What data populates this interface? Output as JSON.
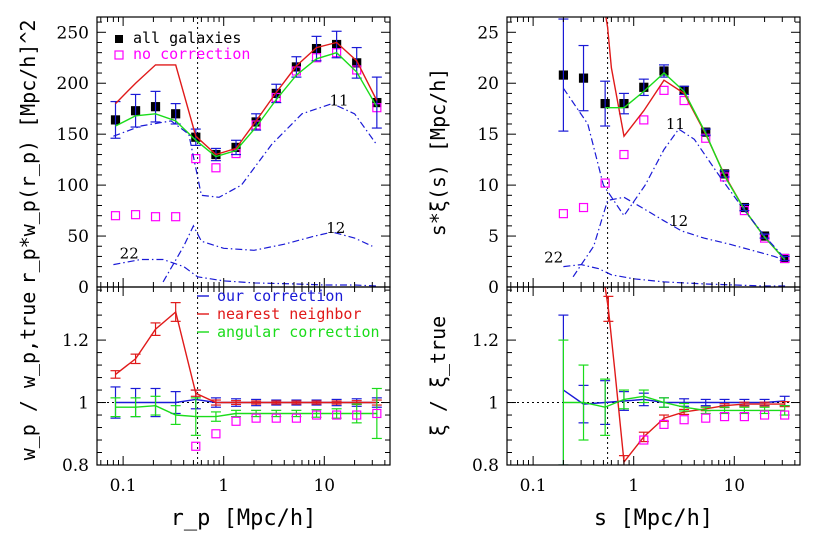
{
  "colors": {
    "all": "#000000",
    "nocorr": "#ff00ff",
    "our": "#1a1ad6",
    "nearest": "#e01a1a",
    "angular": "#1adc1a",
    "axis": "#000000"
  },
  "chart_data": [
    {
      "type": "line",
      "panel": "top-left",
      "xscale": "log",
      "xlim": [
        0.055,
        45
      ],
      "ylim": [
        0,
        265
      ],
      "ylabel": "r_p*w_p(r_p) [Mpc/h]^2",
      "yticks": [
        0,
        50,
        100,
        150,
        200,
        250
      ],
      "vline": 0.55,
      "legend": [
        "all galaxies",
        "no correction"
      ],
      "annotations": [
        {
          "text": "11",
          "x": 14,
          "y": 178
        },
        {
          "text": "12",
          "x": 13,
          "y": 53
        },
        {
          "text": "22",
          "x": 0.115,
          "y": 28
        }
      ],
      "x": [
        0.084,
        0.133,
        0.21,
        0.333,
        0.528,
        0.837,
        1.326,
        2.1,
        3.33,
        5.28,
        8.37,
        13.26,
        21.0,
        33.3
      ],
      "series": [
        {
          "name": "all galaxies",
          "style": "points",
          "y": [
            164,
            173,
            177,
            170,
            147,
            130,
            137,
            162,
            190,
            216,
            234,
            238,
            220,
            181
          ]
        },
        {
          "name": "no correction",
          "style": "points",
          "y": [
            70,
            71,
            69,
            69,
            126,
            117,
            131,
            159,
            186,
            212,
            225,
            230,
            213,
            176
          ]
        },
        {
          "name": "our correction",
          "style": "errorbars",
          "y": [
            164,
            173,
            177,
            170,
            147,
            130,
            137,
            162,
            190,
            216,
            234,
            238,
            220,
            181
          ],
          "err": [
            18,
            16,
            15,
            10,
            8,
            6,
            7,
            8,
            9,
            10,
            12,
            13,
            15,
            25
          ]
        },
        {
          "name": "nearest neighbor",
          "style": "line",
          "x": [
            0.084,
            0.133,
            0.21,
            0.333,
            0.528,
            0.837,
            1.326,
            2.1,
            3.33,
            5.28,
            8.37,
            13.26,
            21.0,
            33.3
          ],
          "y": [
            180,
            200,
            218,
            218,
            148,
            130,
            136,
            163,
            191,
            217,
            235,
            240,
            222,
            183
          ]
        },
        {
          "name": "angular correction",
          "style": "line",
          "x": [
            0.084,
            0.133,
            0.21,
            0.333,
            0.528,
            0.837,
            1.326,
            2.1,
            3.33,
            5.28,
            8.37,
            13.26,
            21.0,
            33.3
          ],
          "y": [
            158,
            168,
            170,
            163,
            144,
            128,
            134,
            157,
            184,
            208,
            224,
            230,
            211,
            177
          ]
        },
        {
          "name": "11",
          "style": "dashdot",
          "x": [
            0.08,
            0.15,
            0.3,
            0.45,
            0.6,
            0.9,
            1.5,
            3,
            6,
            12,
            20,
            33
          ],
          "y": [
            148,
            158,
            163,
            150,
            90,
            88,
            100,
            140,
            170,
            180,
            170,
            140
          ]
        },
        {
          "name": "12",
          "style": "dashdot",
          "x": [
            0.25,
            0.4,
            0.5,
            0.6,
            1.0,
            2.0,
            4.0,
            8.0,
            12.0,
            20.0,
            30.0
          ],
          "y": [
            5,
            40,
            60,
            45,
            38,
            36,
            42,
            50,
            54,
            48,
            40
          ]
        },
        {
          "name": "22",
          "style": "dashdot",
          "x": [
            0.08,
            0.15,
            0.25,
            0.4,
            0.55,
            1,
            2,
            5,
            10,
            20,
            33
          ],
          "y": [
            22,
            27,
            27,
            20,
            10,
            6,
            4,
            3,
            2,
            2,
            1
          ]
        }
      ]
    },
    {
      "type": "line",
      "panel": "top-right",
      "xscale": "log",
      "xlim": [
        0.055,
        45
      ],
      "ylim": [
        0,
        26.5
      ],
      "ylabel": "s*ξ(s) [Mpc/h]",
      "yticks": [
        0,
        5,
        10,
        15,
        20,
        25
      ],
      "vline": 0.55,
      "annotations": [
        {
          "text": "11",
          "x": 2.6,
          "y": 15.5
        },
        {
          "text": "12",
          "x": 2.8,
          "y": 6.0
        },
        {
          "text": "22",
          "x": 0.16,
          "y": 2.4
        }
      ],
      "x": [
        0.2,
        0.317,
        0.52,
        0.8,
        1.26,
        2.0,
        3.17,
        5.2,
        8.0,
        12.6,
        20.0,
        31.7
      ],
      "series": [
        {
          "name": "all galaxies",
          "style": "points",
          "y": [
            20.8,
            20.5,
            18.0,
            18.0,
            19.6,
            21.2,
            19.3,
            15.2,
            11.1,
            7.8,
            5.0,
            2.8
          ]
        },
        {
          "name": "no correction",
          "style": "points",
          "y": [
            7.2,
            7.8,
            10.2,
            13.0,
            16.4,
            19.3,
            18.3,
            14.6,
            10.8,
            7.5,
            4.8,
            2.8
          ]
        },
        {
          "name": "our correction",
          "style": "errorbars",
          "y": [
            20.8,
            20.5,
            18.0,
            18.0,
            19.6,
            21.2,
            19.3,
            15.2,
            11.1,
            7.8,
            5.0,
            2.8
          ],
          "err": [
            5.5,
            3.2,
            2.2,
            1.0,
            0.8,
            0.6,
            0.4,
            0.3,
            0.3,
            0.3,
            0.2,
            0.2
          ]
        },
        {
          "name": "nearest neighbor",
          "style": "line",
          "x": [
            0.52,
            0.55,
            0.6,
            0.8,
            1.26,
            2.0,
            3.17,
            5.2,
            8.0,
            12.6,
            20.0,
            31.7
          ],
          "y": [
            27,
            25.5,
            21.5,
            14.8,
            17.3,
            20.3,
            19.0,
            15.0,
            11.0,
            7.6,
            4.9,
            2.7
          ]
        },
        {
          "name": "angular correction",
          "style": "line",
          "x": [
            0.52,
            0.8,
            1.26,
            2.0,
            3.17,
            5.2,
            8.0,
            12.6,
            20.0,
            31.7
          ],
          "y": [
            17.6,
            17.6,
            19.2,
            21.0,
            19.2,
            15.1,
            10.9,
            7.6,
            4.9,
            2.7
          ]
        },
        {
          "name": "11",
          "style": "dashdot",
          "x": [
            0.2,
            0.35,
            0.5,
            0.8,
            1.3,
            2.0,
            2.8,
            4.0,
            7.0,
            12.0,
            20.0,
            32.0
          ],
          "y": [
            19.5,
            16.0,
            10.0,
            7.0,
            10.0,
            13.5,
            15.5,
            14.5,
            11.0,
            7.8,
            5.0,
            2.8
          ]
        },
        {
          "name": "12",
          "style": "dashdot",
          "x": [
            0.25,
            0.4,
            0.55,
            0.8,
            1.2,
            2.0,
            3.0,
            5.0,
            9.0,
            15.0,
            25.0,
            32.0
          ],
          "y": [
            1.0,
            4.0,
            8.5,
            8.8,
            7.8,
            6.5,
            5.5,
            4.8,
            4.2,
            3.6,
            3.0,
            2.6
          ]
        },
        {
          "name": "22",
          "style": "dashdot",
          "x": [
            0.2,
            0.3,
            0.45,
            0.6,
            1.0,
            2.0,
            5.0,
            10.0,
            20.0,
            32.0
          ],
          "y": [
            2.0,
            2.2,
            1.8,
            1.2,
            0.8,
            0.5,
            0.3,
            0.2,
            0.1,
            0.1
          ]
        }
      ]
    },
    {
      "type": "line",
      "panel": "bottom-left",
      "xscale": "log",
      "xlim": [
        0.055,
        45
      ],
      "ylim": [
        0.8,
        1.37
      ],
      "xlabel": "r_p [Mpc/h]",
      "ylabel": "w_p / w_p,true",
      "xticks": [
        "0.1",
        "1",
        "10"
      ],
      "yticks": [
        "0.8",
        "1",
        "1.2"
      ],
      "vline": 0.55,
      "hline": 1.0,
      "legend": [
        "our correction",
        "nearest neighbor",
        "angular correction"
      ],
      "x": [
        0.084,
        0.133,
        0.21,
        0.333,
        0.528,
        0.837,
        1.326,
        2.1,
        3.33,
        5.28,
        8.37,
        13.26,
        21.0,
        33.3
      ],
      "series": [
        {
          "name": "our correction",
          "style": "line-err",
          "y": [
            1.0,
            1.0,
            1.0,
            1.0,
            1.01,
            1.0,
            1.0,
            1.0,
            1.0,
            1.0,
            1.0,
            1.0,
            1.0,
            1.0
          ],
          "err": [
            0.05,
            0.045,
            0.045,
            0.035,
            0.03,
            0.015,
            0.012,
            0.01,
            0.008,
            0.008,
            0.008,
            0.01,
            0.012,
            0.015
          ]
        },
        {
          "name": "nearest neighbor",
          "style": "line-err",
          "y": [
            1.09,
            1.14,
            1.235,
            1.29,
            1.03,
            1.0,
            1.0,
            1.0,
            1.0,
            1.0,
            1.0,
            1.0,
            1.0,
            1.0
          ],
          "err": [
            0.012,
            0.015,
            0.02,
            0.03,
            0.01,
            0.008,
            0.006,
            0.005,
            0.005,
            0.005,
            0.005,
            0.005,
            0.006,
            0.008
          ]
        },
        {
          "name": "angular correction",
          "style": "line-err",
          "y": [
            0.985,
            0.985,
            0.99,
            0.96,
            0.955,
            0.955,
            0.965,
            0.965,
            0.965,
            0.965,
            0.965,
            0.965,
            0.965,
            0.965
          ],
          "err": [
            0.03,
            0.03,
            0.03,
            0.03,
            0.06,
            0.015,
            0.01,
            0.01,
            0.01,
            0.01,
            0.012,
            0.015,
            0.03,
            0.08
          ]
        },
        {
          "name": "no correction",
          "style": "points",
          "x": [
            0.528,
            0.837,
            1.326,
            2.1,
            3.33,
            5.28,
            8.37,
            13.26,
            21.0,
            33.3
          ],
          "y": [
            0.86,
            0.9,
            0.94,
            0.95,
            0.95,
            0.95,
            0.96,
            0.96,
            0.96,
            0.965
          ]
        }
      ]
    },
    {
      "type": "line",
      "panel": "bottom-right",
      "xscale": "log",
      "xlim": [
        0.055,
        45
      ],
      "ylim": [
        0.8,
        1.37
      ],
      "xlabel": "s [Mpc/h]",
      "ylabel": "ξ / ξ_true",
      "xticks": [
        "0.1",
        "1",
        "10"
      ],
      "yticks": [
        "0.8",
        "1",
        "1.2"
      ],
      "vline": 0.55,
      "hline": 1.0,
      "x": [
        0.2,
        0.317,
        0.52,
        0.8,
        1.26,
        2.0,
        3.17,
        5.2,
        8.0,
        12.6,
        20.0,
        31.7
      ],
      "series": [
        {
          "name": "our correction",
          "style": "line-err",
          "y": [
            1.04,
            0.995,
            1.0,
            1.005,
            1.01,
            1.0,
            1.0,
            1.0,
            1.0,
            1.0,
            1.0,
            1.005
          ],
          "err": [
            0.24,
            0.06,
            0.07,
            0.03,
            0.02,
            0.015,
            0.012,
            0.01,
            0.01,
            0.01,
            0.01,
            0.015
          ]
        },
        {
          "name": "nearest neighbor",
          "style": "line-err",
          "x": [
            0.52,
            0.56,
            0.65,
            0.8,
            1.26,
            2.0,
            3.17,
            5.2,
            8.0,
            12.6,
            20.0,
            31.7
          ],
          "y": [
            1.37,
            1.3,
            1.1,
            0.81,
            0.89,
            0.95,
            0.97,
            0.98,
            0.99,
            0.995,
            0.995,
            0.995
          ],
          "err": [
            0,
            0.04,
            0,
            0.02,
            0.015,
            0.01,
            0.008,
            0.006,
            0.006,
            0.006,
            0.006,
            0.008
          ]
        },
        {
          "name": "angular correction",
          "style": "line-err",
          "y": [
            1.0,
            1.0,
            0.985,
            1.01,
            1.02,
            1.0,
            0.985,
            0.975,
            0.975,
            0.975,
            0.975,
            0.975
          ],
          "err": [
            0.2,
            0.12,
            0.09,
            0.03,
            0.02,
            0.015,
            0.012,
            0.01,
            0.01,
            0.01,
            0.01,
            0.015
          ]
        },
        {
          "name": "no correction",
          "style": "points",
          "x": [
            1.26,
            2.0,
            3.17,
            5.2,
            8.0,
            12.6,
            20.0,
            31.7
          ],
          "y": [
            0.88,
            0.93,
            0.945,
            0.95,
            0.955,
            0.955,
            0.96,
            0.96
          ]
        }
      ]
    }
  ]
}
